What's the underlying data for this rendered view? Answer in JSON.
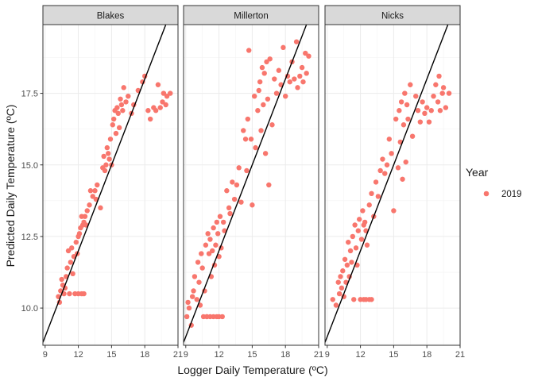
{
  "chart_data": {
    "type": "scatter",
    "xlabel": "Logger Daily Temperature (ºC)",
    "ylabel": "Predicted Daily Temperature (ºC)",
    "xlim": [
      8.8,
      21
    ],
    "ylim": [
      8.7,
      19.9
    ],
    "x_ticks": [
      9,
      12,
      15,
      18,
      21
    ],
    "y_ticks": [
      10.0,
      12.5,
      15.0,
      17.5
    ],
    "x_tick_labels": [
      "9",
      "12",
      "15",
      "18",
      "21"
    ],
    "y_tick_labels": [
      "10.0",
      "12.5",
      "15.0",
      "17.5"
    ],
    "grid": true,
    "legend_position": "right",
    "legend": {
      "title": "Year",
      "entries": [
        {
          "label": "2019",
          "color": "#F8766D"
        }
      ]
    },
    "reference_line": {
      "intercept": 0,
      "slope": 1
    },
    "point_color": "#F8766D",
    "facets": [
      {
        "label": "Blakes",
        "points": [
          [
            10.2,
            10.4
          ],
          [
            10.3,
            10.2
          ],
          [
            10.4,
            10.6
          ],
          [
            10.5,
            11.0
          ],
          [
            10.6,
            10.8
          ],
          [
            10.7,
            10.5
          ],
          [
            10.8,
            10.7
          ],
          [
            10.9,
            11.1
          ],
          [
            11.0,
            11.4
          ],
          [
            11.1,
            12.0
          ],
          [
            11.2,
            10.5
          ],
          [
            11.3,
            11.6
          ],
          [
            11.4,
            12.1
          ],
          [
            11.5,
            11.2
          ],
          [
            11.6,
            11.8
          ],
          [
            11.7,
            10.5
          ],
          [
            11.8,
            12.3
          ],
          [
            11.9,
            11.9
          ],
          [
            12.0,
            12.5
          ],
          [
            12.1,
            12.6
          ],
          [
            12.2,
            12.8
          ],
          [
            12.3,
            13.2
          ],
          [
            12.4,
            12.9
          ],
          [
            12.5,
            13.0
          ],
          [
            12.6,
            13.2
          ],
          [
            12.7,
            12.9
          ],
          [
            12.8,
            13.4
          ],
          [
            13.0,
            13.6
          ],
          [
            13.1,
            14.1
          ],
          [
            13.3,
            13.9
          ],
          [
            13.5,
            14.1
          ],
          [
            13.6,
            13.8
          ],
          [
            13.7,
            14.3
          ],
          [
            14.0,
            13.5
          ],
          [
            14.2,
            14.9
          ],
          [
            14.3,
            15.3
          ],
          [
            14.4,
            14.8
          ],
          [
            14.5,
            15.0
          ],
          [
            14.6,
            15.6
          ],
          [
            14.7,
            15.4
          ],
          [
            14.8,
            15.2
          ],
          [
            14.9,
            15.9
          ],
          [
            15.0,
            15.0
          ],
          [
            15.1,
            16.4
          ],
          [
            15.2,
            16.6
          ],
          [
            15.3,
            16.9
          ],
          [
            15.4,
            16.1
          ],
          [
            15.5,
            17.0
          ],
          [
            15.6,
            16.8
          ],
          [
            15.7,
            16.3
          ],
          [
            15.8,
            17.3
          ],
          [
            15.9,
            17.1
          ],
          [
            16.0,
            16.9
          ],
          [
            16.1,
            17.7
          ],
          [
            16.3,
            17.2
          ],
          [
            16.5,
            17.4
          ],
          [
            16.8,
            16.8
          ],
          [
            17.0,
            17.1
          ],
          [
            17.4,
            17.6
          ],
          [
            17.8,
            17.9
          ],
          [
            18.0,
            18.1
          ],
          [
            18.3,
            16.9
          ],
          [
            18.5,
            16.6
          ],
          [
            18.8,
            17.0
          ],
          [
            19.0,
            16.9
          ],
          [
            19.2,
            17.8
          ],
          [
            19.4,
            17.0
          ],
          [
            19.6,
            17.2
          ],
          [
            19.7,
            17.5
          ],
          [
            19.9,
            17.1
          ],
          [
            20.0,
            17.4
          ],
          [
            20.3,
            17.5
          ],
          [
            12.0,
            10.5
          ],
          [
            12.3,
            10.5
          ],
          [
            12.5,
            10.5
          ]
        ]
      },
      {
        "label": "Millerton",
        "points": [
          [
            9.1,
            9.7
          ],
          [
            9.2,
            10.2
          ],
          [
            9.3,
            10.0
          ],
          [
            9.5,
            9.4
          ],
          [
            9.6,
            10.4
          ],
          [
            9.7,
            10.6
          ],
          [
            9.8,
            11.1
          ],
          [
            10.0,
            10.3
          ],
          [
            10.1,
            11.6
          ],
          [
            10.2,
            10.9
          ],
          [
            10.3,
            10.1
          ],
          [
            10.4,
            11.9
          ],
          [
            10.5,
            11.4
          ],
          [
            10.6,
            9.7
          ],
          [
            10.7,
            10.6
          ],
          [
            10.8,
            12.2
          ],
          [
            10.9,
            9.7
          ],
          [
            11.0,
            12.6
          ],
          [
            11.1,
            11.9
          ],
          [
            11.2,
            12.4
          ],
          [
            11.3,
            11.1
          ],
          [
            11.4,
            12.0
          ],
          [
            11.5,
            12.8
          ],
          [
            11.6,
            11.5
          ],
          [
            11.7,
            12.2
          ],
          [
            11.8,
            13.0
          ],
          [
            11.9,
            12.6
          ],
          [
            12.0,
            11.8
          ],
          [
            12.1,
            13.2
          ],
          [
            12.2,
            12.1
          ],
          [
            12.4,
            13.0
          ],
          [
            12.5,
            12.7
          ],
          [
            12.7,
            14.1
          ],
          [
            12.9,
            13.5
          ],
          [
            13.0,
            13.3
          ],
          [
            13.2,
            14.4
          ],
          [
            13.4,
            13.8
          ],
          [
            13.6,
            14.3
          ],
          [
            13.8,
            14.9
          ],
          [
            14.0,
            13.7
          ],
          [
            14.2,
            16.2
          ],
          [
            14.4,
            15.9
          ],
          [
            14.5,
            14.8
          ],
          [
            14.6,
            16.6
          ],
          [
            14.7,
            19.0
          ],
          [
            14.9,
            15.9
          ],
          [
            15.0,
            13.6
          ],
          [
            15.2,
            17.4
          ],
          [
            15.3,
            15.6
          ],
          [
            15.5,
            16.9
          ],
          [
            15.6,
            17.6
          ],
          [
            15.7,
            17.9
          ],
          [
            15.8,
            16.2
          ],
          [
            15.9,
            18.4
          ],
          [
            16.0,
            17.1
          ],
          [
            16.1,
            18.2
          ],
          [
            16.2,
            15.4
          ],
          [
            16.3,
            18.6
          ],
          [
            16.4,
            17.3
          ],
          [
            16.5,
            14.3
          ],
          [
            16.6,
            18.7
          ],
          [
            16.8,
            16.4
          ],
          [
            17.0,
            18.0
          ],
          [
            17.2,
            17.5
          ],
          [
            17.4,
            18.3
          ],
          [
            17.6,
            17.8
          ],
          [
            17.8,
            19.1
          ],
          [
            18.0,
            17.4
          ],
          [
            18.2,
            18.1
          ],
          [
            18.4,
            17.9
          ],
          [
            18.6,
            18.6
          ],
          [
            18.8,
            18.0
          ],
          [
            19.0,
            19.3
          ],
          [
            19.1,
            17.7
          ],
          [
            19.3,
            18.1
          ],
          [
            19.5,
            18.4
          ],
          [
            19.6,
            17.9
          ],
          [
            19.8,
            18.9
          ],
          [
            19.9,
            18.2
          ],
          [
            20.1,
            18.8
          ],
          [
            10.9,
            9.7
          ],
          [
            11.2,
            9.7
          ],
          [
            11.5,
            9.7
          ],
          [
            11.8,
            9.7
          ],
          [
            12.0,
            9.7
          ],
          [
            12.3,
            9.7
          ]
        ]
      },
      {
        "label": "Nicks",
        "points": [
          [
            9.5,
            10.3
          ],
          [
            9.8,
            10.1
          ],
          [
            10.0,
            10.9
          ],
          [
            10.1,
            10.5
          ],
          [
            10.2,
            11.1
          ],
          [
            10.3,
            10.7
          ],
          [
            10.4,
            11.3
          ],
          [
            10.5,
            10.4
          ],
          [
            10.6,
            11.7
          ],
          [
            10.7,
            10.9
          ],
          [
            10.8,
            11.5
          ],
          [
            10.9,
            12.3
          ],
          [
            11.0,
            11.1
          ],
          [
            11.1,
            12.0
          ],
          [
            11.2,
            11.6
          ],
          [
            11.3,
            12.5
          ],
          [
            11.4,
            10.3
          ],
          [
            11.5,
            12.9
          ],
          [
            11.6,
            12.1
          ],
          [
            11.7,
            11.5
          ],
          [
            11.8,
            12.7
          ],
          [
            11.9,
            13.1
          ],
          [
            12.0,
            10.3
          ],
          [
            12.1,
            12.4
          ],
          [
            12.2,
            13.4
          ],
          [
            12.3,
            12.9
          ],
          [
            12.4,
            13.0
          ],
          [
            12.5,
            12.7
          ],
          [
            12.6,
            12.2
          ],
          [
            12.8,
            13.6
          ],
          [
            13.0,
            14.0
          ],
          [
            13.2,
            13.2
          ],
          [
            13.4,
            14.4
          ],
          [
            13.6,
            13.9
          ],
          [
            13.8,
            14.8
          ],
          [
            14.0,
            15.2
          ],
          [
            14.2,
            14.7
          ],
          [
            14.4,
            15.0
          ],
          [
            14.6,
            15.9
          ],
          [
            14.8,
            15.4
          ],
          [
            15.0,
            13.4
          ],
          [
            15.2,
            16.6
          ],
          [
            15.4,
            14.9
          ],
          [
            15.5,
            16.9
          ],
          [
            15.6,
            15.8
          ],
          [
            15.7,
            17.2
          ],
          [
            15.8,
            14.5
          ],
          [
            15.9,
            16.4
          ],
          [
            16.0,
            17.5
          ],
          [
            16.1,
            15.1
          ],
          [
            16.2,
            17.1
          ],
          [
            16.3,
            16.6
          ],
          [
            16.5,
            17.8
          ],
          [
            16.7,
            16.0
          ],
          [
            17.0,
            17.4
          ],
          [
            17.2,
            16.9
          ],
          [
            17.4,
            16.5
          ],
          [
            17.6,
            17.2
          ],
          [
            17.8,
            16.8
          ],
          [
            18.0,
            17.0
          ],
          [
            18.2,
            16.5
          ],
          [
            18.4,
            16.9
          ],
          [
            18.6,
            17.4
          ],
          [
            18.8,
            17.8
          ],
          [
            19.0,
            17.2
          ],
          [
            19.1,
            18.1
          ],
          [
            19.2,
            16.9
          ],
          [
            19.4,
            17.5
          ],
          [
            19.5,
            17.7
          ],
          [
            19.7,
            17.0
          ],
          [
            20.0,
            17.5
          ],
          [
            12.3,
            10.3
          ],
          [
            12.5,
            10.3
          ],
          [
            12.8,
            10.3
          ],
          [
            13.0,
            10.3
          ]
        ]
      }
    ]
  }
}
